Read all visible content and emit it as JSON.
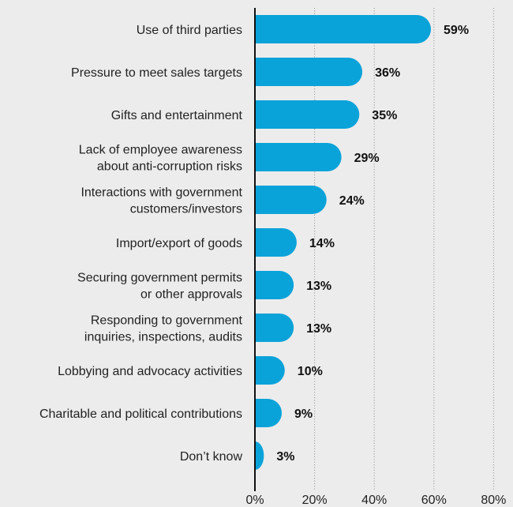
{
  "chart_data": {
    "type": "bar",
    "orientation": "horizontal",
    "categories": [
      [
        "Use of third parties"
      ],
      [
        "Pressure to meet sales targets"
      ],
      [
        "Gifts and entertainment"
      ],
      [
        "Lack of employee awareness",
        "about anti-corruption risks"
      ],
      [
        "Interactions with government",
        "customers/investors"
      ],
      [
        "Import/export of goods"
      ],
      [
        "Securing government permits",
        "or other approvals"
      ],
      [
        "Responding to government",
        "inquiries, inspections, audits"
      ],
      [
        "Lobbying and advocacy activities"
      ],
      [
        "Charitable and political contributions"
      ],
      [
        "Don’t know"
      ]
    ],
    "values": [
      59,
      36,
      35,
      29,
      24,
      14,
      13,
      13,
      10,
      9,
      3
    ],
    "value_labels": [
      "59%",
      "36%",
      "35%",
      "29%",
      "24%",
      "14%",
      "13%",
      "13%",
      "10%",
      "9%",
      "3%"
    ],
    "xlim": [
      0,
      80
    ],
    "xticks": [
      0,
      20,
      40,
      60,
      80
    ],
    "xtick_labels": [
      "0%",
      "20%",
      "40%",
      "60%",
      "80%"
    ],
    "grid": "vertical dotted",
    "bar_color": "#0aa3d9",
    "title": "",
    "xlabel": "",
    "ylabel": ""
  }
}
